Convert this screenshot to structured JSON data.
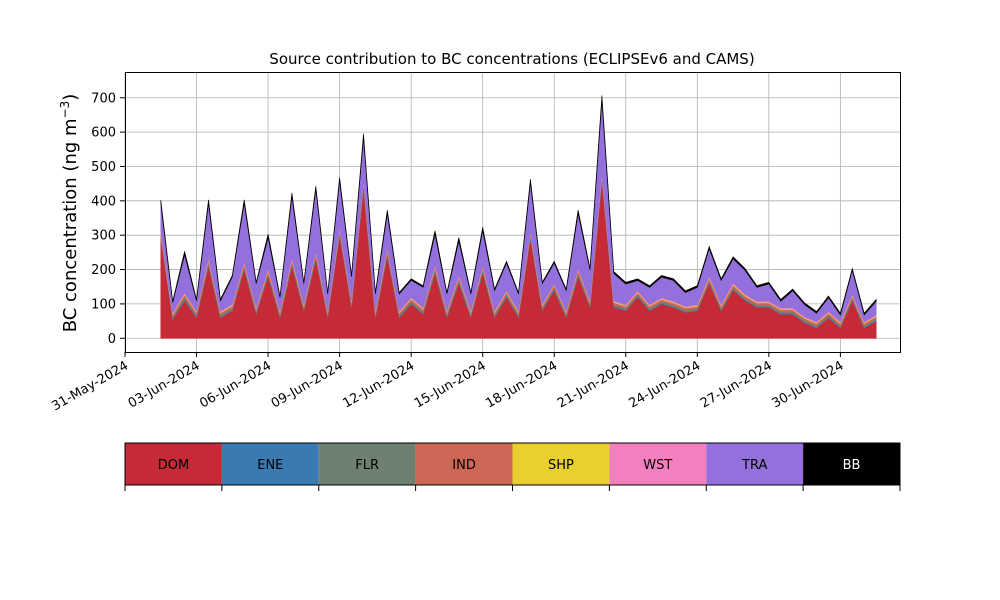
{
  "chart_data": {
    "type": "area",
    "stacked": true,
    "title": "Source contribution to BC concentrations (ECLIPSEv6 and CAMS)",
    "xlabel": "",
    "ylabel": "BC concentration (ng m",
    "ylabel_unit_sup": "−3",
    "ylabel_close": ")",
    "ylim": [
      -40,
      775
    ],
    "xlim": [
      "2024-05-31T00:00",
      "2024-07-02T12:00"
    ],
    "yticks": [
      0,
      100,
      200,
      300,
      400,
      500,
      600,
      700
    ],
    "xticks": [
      {
        "date": "2024-05-31",
        "label": "31-May-2024"
      },
      {
        "date": "2024-06-03",
        "label": "03-Jun-2024"
      },
      {
        "date": "2024-06-06",
        "label": "06-Jun-2024"
      },
      {
        "date": "2024-06-09",
        "label": "09-Jun-2024"
      },
      {
        "date": "2024-06-12",
        "label": "12-Jun-2024"
      },
      {
        "date": "2024-06-15",
        "label": "15-Jun-2024"
      },
      {
        "date": "2024-06-18",
        "label": "18-Jun-2024"
      },
      {
        "date": "2024-06-21",
        "label": "21-Jun-2024"
      },
      {
        "date": "2024-06-24",
        "label": "24-Jun-2024"
      },
      {
        "date": "2024-06-27",
        "label": "27-Jun-2024"
      },
      {
        "date": "2024-06-30",
        "label": "30-Jun-2024"
      }
    ],
    "grid": true,
    "legend_placement": "bottom",
    "x": [
      "2024-06-01T12:00",
      "2024-06-02T00:00",
      "2024-06-02T12:00",
      "2024-06-03T00:00",
      "2024-06-03T12:00",
      "2024-06-04T00:00",
      "2024-06-04T12:00",
      "2024-06-05T00:00",
      "2024-06-05T12:00",
      "2024-06-06T00:00",
      "2024-06-06T12:00",
      "2024-06-07T00:00",
      "2024-06-07T12:00",
      "2024-06-08T00:00",
      "2024-06-08T12:00",
      "2024-06-09T00:00",
      "2024-06-09T12:00",
      "2024-06-10T00:00",
      "2024-06-10T12:00",
      "2024-06-11T00:00",
      "2024-06-11T12:00",
      "2024-06-12T00:00",
      "2024-06-12T12:00",
      "2024-06-13T00:00",
      "2024-06-13T12:00",
      "2024-06-14T00:00",
      "2024-06-14T12:00",
      "2024-06-15T00:00",
      "2024-06-15T12:00",
      "2024-06-16T00:00",
      "2024-06-16T12:00",
      "2024-06-17T00:00",
      "2024-06-17T12:00",
      "2024-06-18T00:00",
      "2024-06-18T12:00",
      "2024-06-19T00:00",
      "2024-06-19T12:00",
      "2024-06-20T00:00",
      "2024-06-20T12:00",
      "2024-06-21T00:00",
      "2024-06-21T12:00",
      "2024-06-22T00:00",
      "2024-06-22T12:00",
      "2024-06-23T00:00",
      "2024-06-23T12:00",
      "2024-06-24T00:00",
      "2024-06-24T12:00",
      "2024-06-25T00:00",
      "2024-06-25T12:00",
      "2024-06-26T00:00",
      "2024-06-26T12:00",
      "2024-06-27T00:00",
      "2024-06-27T12:00",
      "2024-06-28T00:00",
      "2024-06-28T12:00",
      "2024-06-29T00:00",
      "2024-06-29T12:00",
      "2024-06-30T00:00",
      "2024-06-30T12:00",
      "2024-07-01T00:00",
      "2024-07-01T12:00"
    ],
    "series": [
      {
        "name": "DOM",
        "color": "#c62a37",
        "values": [
          290,
          55,
          110,
          60,
          210,
          60,
          80,
          200,
          70,
          180,
          60,
          210,
          80,
          230,
          60,
          300,
          90,
          440,
          60,
          240,
          60,
          100,
          70,
          190,
          60,
          160,
          60,
          190,
          60,
          120,
          60,
          290,
          80,
          140,
          60,
          180,
          90,
          460,
          90,
          80,
          120,
          80,
          100,
          90,
          75,
          80,
          160,
          80,
          140,
          110,
          90,
          90,
          70,
          70,
          45,
          30,
          60,
          30,
          110,
          30,
          50
        ]
      },
      {
        "name": "ENE",
        "color": "#3a7ab3",
        "values": [
          3,
          2,
          3,
          2,
          3,
          2,
          2,
          3,
          2,
          3,
          2,
          3,
          2,
          3,
          2,
          3,
          2,
          3,
          2,
          3,
          2,
          2,
          2,
          3,
          2,
          3,
          2,
          3,
          2,
          2,
          2,
          3,
          2,
          2,
          2,
          3,
          2,
          3,
          2,
          2,
          2,
          2,
          2,
          2,
          2,
          2,
          2,
          2,
          2,
          2,
          2,
          2,
          2,
          2,
          2,
          2,
          2,
          2,
          2,
          2,
          2
        ]
      },
      {
        "name": "FLR",
        "color": "#6e8070",
        "values": [
          5,
          6,
          6,
          6,
          6,
          6,
          6,
          6,
          6,
          6,
          6,
          6,
          6,
          6,
          6,
          6,
          6,
          6,
          6,
          6,
          6,
          6,
          6,
          6,
          6,
          6,
          6,
          6,
          6,
          6,
          6,
          6,
          6,
          6,
          6,
          6,
          6,
          6,
          6,
          5,
          5,
          5,
          5,
          5,
          5,
          5,
          5,
          5,
          5,
          5,
          5,
          5,
          5,
          5,
          5,
          5,
          5,
          5,
          5,
          5,
          5
        ]
      },
      {
        "name": "IND",
        "color": "#cd6656",
        "values": [
          8,
          6,
          8,
          6,
          8,
          6,
          6,
          8,
          6,
          8,
          6,
          8,
          6,
          8,
          6,
          8,
          6,
          8,
          6,
          8,
          6,
          6,
          6,
          8,
          6,
          8,
          6,
          8,
          6,
          6,
          6,
          8,
          6,
          6,
          6,
          8,
          6,
          8,
          6,
          6,
          6,
          6,
          6,
          6,
          6,
          6,
          8,
          6,
          8,
          6,
          6,
          6,
          6,
          6,
          6,
          6,
          6,
          6,
          6,
          6,
          6
        ]
      },
      {
        "name": "SHP",
        "color": "#e8d12f",
        "values": [
          2,
          2,
          2,
          2,
          2,
          2,
          2,
          2,
          2,
          2,
          2,
          2,
          2,
          2,
          2,
          2,
          2,
          2,
          2,
          2,
          2,
          2,
          2,
          2,
          2,
          2,
          2,
          2,
          2,
          2,
          2,
          2,
          2,
          2,
          2,
          2,
          2,
          2,
          2,
          2,
          2,
          2,
          2,
          2,
          2,
          2,
          2,
          2,
          2,
          2,
          2,
          2,
          2,
          2,
          2,
          2,
          2,
          2,
          2,
          2,
          2
        ]
      },
      {
        "name": "WST",
        "color": "#f37fbf",
        "values": [
          4,
          3,
          4,
          3,
          4,
          3,
          3,
          4,
          3,
          4,
          3,
          4,
          3,
          4,
          3,
          4,
          3,
          4,
          3,
          4,
          3,
          3,
          3,
          4,
          3,
          4,
          3,
          4,
          3,
          3,
          3,
          4,
          3,
          3,
          3,
          4,
          3,
          4,
          3,
          3,
          3,
          3,
          3,
          3,
          3,
          3,
          4,
          3,
          4,
          3,
          3,
          3,
          3,
          3,
          3,
          3,
          3,
          3,
          3,
          3,
          3
        ]
      },
      {
        "name": "TRA",
        "color": "#9370db",
        "values": [
          80,
          30,
          110,
          30,
          160,
          30,
          80,
          170,
          70,
          90,
          40,
          180,
          60,
          180,
          50,
          135,
          70,
          120,
          50,
          100,
          50,
          50,
          60,
          90,
          50,
          100,
          50,
          100,
          60,
          80,
          50,
          140,
          60,
          60,
          60,
          160,
          90,
          210,
          80,
          60,
          30,
          50,
          60,
          60,
          40,
          50,
          80,
          70,
          70,
          70,
          40,
          50,
          20,
          50,
          35,
          25,
          40,
          20,
          70,
          20,
          40
        ]
      },
      {
        "name": "BB",
        "color": "#000000",
        "values": [
          10,
          4,
          10,
          4,
          10,
          4,
          4,
          10,
          4,
          10,
          4,
          10,
          4,
          10,
          4,
          10,
          4,
          12,
          4,
          10,
          4,
          4,
          4,
          10,
          4,
          10,
          4,
          10,
          4,
          5,
          4,
          10,
          4,
          5,
          4,
          10,
          5,
          14,
          5,
          5,
          5,
          5,
          5,
          5,
          5,
          5,
          6,
          5,
          6,
          5,
          5,
          5,
          5,
          5,
          5,
          5,
          5,
          5,
          5,
          5,
          5
        ]
      }
    ]
  }
}
